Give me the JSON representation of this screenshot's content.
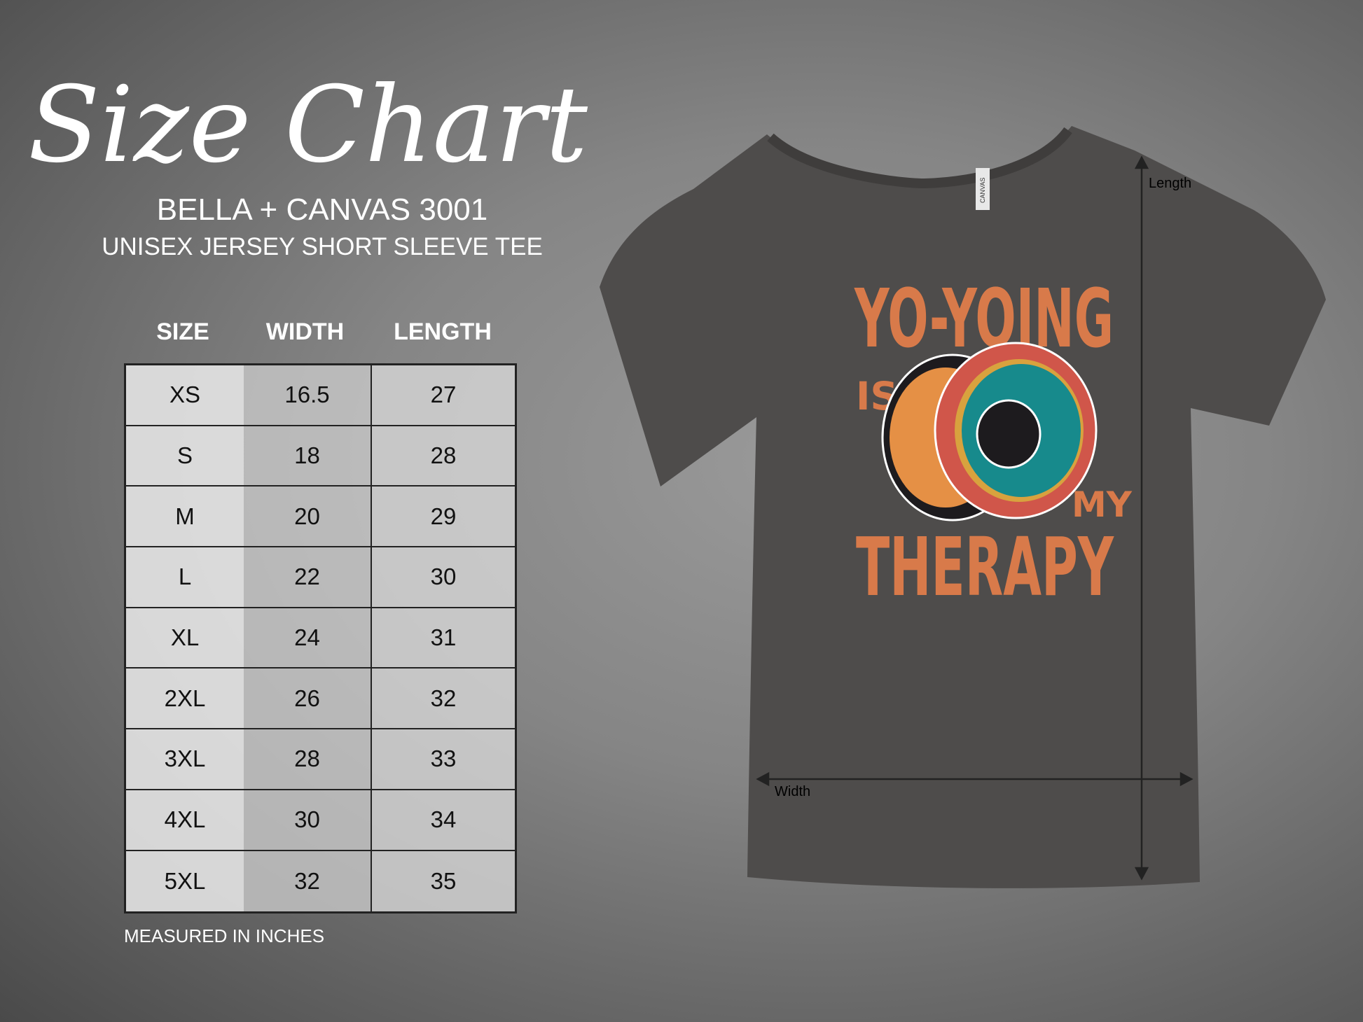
{
  "header": {
    "script_title": "Size Chart",
    "brand": "BELLA + CANVAS 3001",
    "subtitle": "UNISEX JERSEY SHORT SLEEVE TEE"
  },
  "table": {
    "columns": [
      "SIZE",
      "WIDTH",
      "LENGTH"
    ],
    "rows": [
      [
        "XS",
        "16.5",
        "27"
      ],
      [
        "S",
        "18",
        "28"
      ],
      [
        "M",
        "20",
        "29"
      ],
      [
        "L",
        "22",
        "30"
      ],
      [
        "XL",
        "24",
        "31"
      ],
      [
        "2XL",
        "26",
        "32"
      ],
      [
        "3XL",
        "28",
        "33"
      ],
      [
        "4XL",
        "30",
        "34"
      ],
      [
        "5XL",
        "32",
        "35"
      ]
    ],
    "footnote": "MEASURED IN INCHES"
  },
  "shirt": {
    "color": "#4e4c4b",
    "tag_text": "CANVAS",
    "length_label": "Length",
    "width_label": "Width",
    "design": {
      "line1": "YO-YOING",
      "line2": "IS",
      "line3": "MY",
      "line4": "THERAPY",
      "accent": "#d87a4a"
    }
  }
}
